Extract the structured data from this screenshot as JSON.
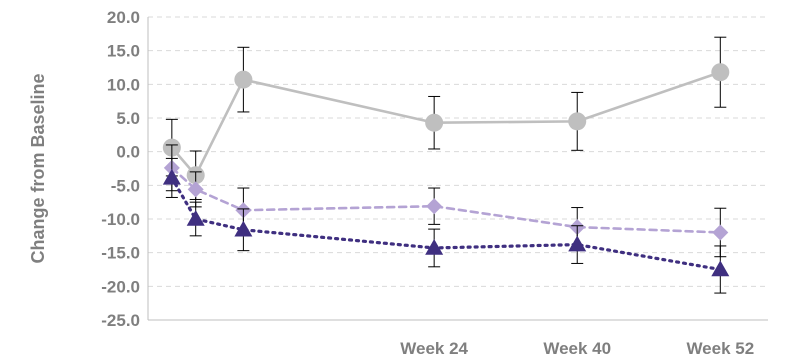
{
  "chart_data": {
    "type": "line",
    "title": "",
    "xlabel": "",
    "ylabel": "Change from Baseline",
    "ylim": [
      -25,
      20
    ],
    "yticks": [
      20,
      15,
      10,
      5,
      0,
      -5,
      -10,
      -15,
      -20,
      -25
    ],
    "ytick_labels": [
      "20.0",
      "15.0",
      "10.0",
      "5.0",
      "0.0",
      "-5.0",
      "-10.0",
      "-15.0",
      "-20.0",
      "-25.0"
    ],
    "x": [
      1,
      2,
      4,
      12,
      18,
      24
    ],
    "xlim": [
      0,
      26
    ],
    "x_tick_positions": [
      12,
      18,
      24
    ],
    "x_tick_labels": [
      "Week 24",
      "Week 40",
      "Week 52"
    ],
    "grid": "horizontal dashed",
    "series": [
      {
        "color": "#bfbfbf",
        "marker": "circle",
        "line": "solid",
        "values": [
          0.6,
          -3.5,
          10.7,
          4.3,
          4.5,
          11.8
        ],
        "err": [
          4.2,
          3.6,
          4.8,
          3.9,
          4.3,
          5.2
        ]
      },
      {
        "color": "#b4a3d4",
        "marker": "diamond",
        "line": "dashed",
        "values": [
          -2.4,
          -5.6,
          -8.7,
          -8.1,
          -11.2,
          -12.0
        ],
        "err": [
          3.4,
          2.6,
          3.3,
          2.7,
          2.9,
          3.6
        ]
      },
      {
        "color": "#3f2f80",
        "marker": "triangle",
        "line": "dotted",
        "values": [
          -3.9,
          -10.0,
          -11.6,
          -14.3,
          -13.8,
          -17.5
        ],
        "err": [
          2.9,
          2.5,
          3.1,
          2.8,
          2.8,
          3.5
        ]
      }
    ]
  }
}
